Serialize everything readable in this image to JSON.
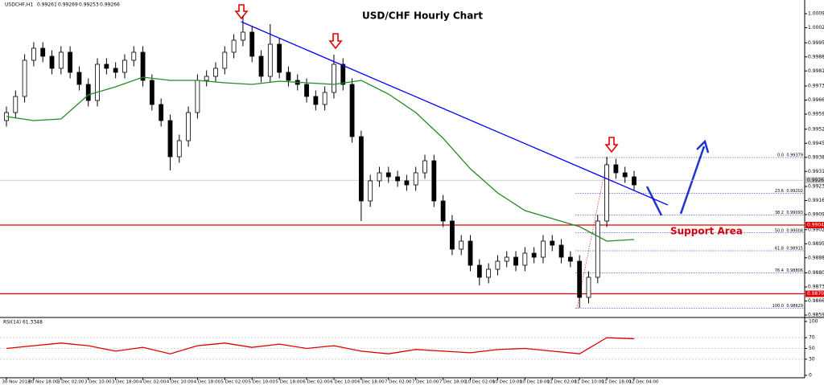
{
  "chart_data": {
    "type": "candlestick",
    "header": "USDCHF,H1",
    "header_values": [
      0.99261,
      0.99269,
      0.99253,
      0.99266
    ],
    "title": "USD/CHF Hourly Chart",
    "annotation": "Support Area",
    "up_color": "#ffffff",
    "down_color": "#000000",
    "ylim": [
      0.98583,
      1.00147
    ],
    "yticks": [
      1.00095,
      1.00025,
      {
        "value": 0.9995,
        "label": "0.99950"
      },
      {
        "value": 0.9988,
        "label": "0.99880"
      },
      {
        "value": 0.9981,
        "label": "0.99810"
      },
      0.99735,
      0.99665,
      0.99595,
      {
        "value": 0.9952,
        "label": "0.99520"
      },
      {
        "value": 0.9945,
        "label": "0.99450"
      },
      {
        "value": 0.9938,
        "label": "0.99380"
      },
      {
        "value": 0.9931,
        "label": "0.99310"
      },
      0.99235,
      0.99165,
      0.99095,
      {
        "value": 0.9902,
        "label": "0.99020"
      },
      {
        "value": 0.9895,
        "label": "0.98950"
      },
      {
        "value": 0.9888,
        "label": "0.98880"
      },
      0.98805,
      0.98735,
      0.98665,
      0.98595
    ],
    "x_labels": [
      "30 Nov 2018",
      "30 Nov 18:00",
      "3 Dec 02:00",
      "3 Dec 10:00",
      "3 Dec 18:00",
      "4 Dec 02:00",
      "4 Dec 10:00",
      "4 Dec 18:00",
      "5 Dec 02:00",
      "5 Dec 10:00",
      "5 Dec 18:00",
      "6 Dec 02:00",
      "6 Dec 10:00",
      "6 Dec 18:00",
      "7 Dec 02:00",
      "7 Dec 10:00",
      "7 Dec 18:00",
      "10 Dec 02:00",
      "10 Dec 10:00",
      "10 Dec 18:00",
      "11 Dec 02:00",
      "11 Dec 10:00",
      "11 Dec 18:00",
      "12 Dec 04:00"
    ],
    "open": [
      0.99563,
      0.99603,
      0.99683,
      0.99863,
      0.99923,
      0.99883,
      0.99823,
      0.99903,
      0.99803,
      0.99743,
      0.99663,
      0.99843,
      0.99823,
      0.99803,
      0.99863,
      0.99903,
      0.99763,
      0.99643,
      0.99563,
      0.99383,
      0.99463,
      0.99603,
      0.99763,
      0.99783,
      0.99823,
      0.99903,
      0.99963,
      1.00003,
      0.99883,
      0.99783,
      0.99943,
      0.99803,
      0.99763,
      0.99743,
      0.99683,
      0.99643,
      0.99703,
      0.99843,
      0.99743,
      0.99483,
      0.99163,
      0.99263,
      0.99303,
      0.99283,
      0.99263,
      0.99243,
      0.99303,
      0.99363,
      0.99163,
      0.99063,
      0.98923,
      0.98963,
      0.98843,
      0.98783,
      0.98823,
      0.98863,
      0.98883,
      0.98843,
      0.98903,
      0.98883,
      0.98963,
      0.98943,
      0.98883,
      0.98863,
      0.98683,
      0.98783,
      0.99063,
      0.99343,
      0.99303,
      0.99283
    ],
    "high": [
      0.99633,
      0.99713,
      0.99893,
      0.99953,
      0.99953,
      0.99913,
      0.99933,
      0.99933,
      0.99833,
      0.99773,
      0.99873,
      0.99873,
      0.99853,
      0.99893,
      0.99933,
      0.99933,
      0.99793,
      0.99673,
      0.99593,
      0.99493,
      0.99633,
      0.99793,
      0.99813,
      0.99853,
      0.99933,
      0.99993,
      1.00083,
      1.00033,
      0.99913,
      1.00043,
      0.99973,
      0.99833,
      0.99793,
      0.99773,
      0.99713,
      0.99733,
      0.99891,
      0.99873,
      0.99773,
      0.99513,
      0.99293,
      0.99333,
      0.99333,
      0.99313,
      0.99293,
      0.99333,
      0.99393,
      0.99393,
      0.99193,
      0.99093,
      0.98993,
      0.98993,
      0.98873,
      0.98853,
      0.98893,
      0.98913,
      0.98913,
      0.98933,
      0.98933,
      0.98993,
      0.98993,
      0.98973,
      0.98913,
      0.98893,
      0.98813,
      0.99093,
      0.99383,
      0.99373,
      0.99333,
      0.99313
    ],
    "low": [
      0.99533,
      0.99573,
      0.99653,
      0.99833,
      0.99853,
      0.99793,
      0.99793,
      0.99773,
      0.99713,
      0.99633,
      0.99633,
      0.99793,
      0.99773,
      0.99773,
      0.99833,
      0.99733,
      0.99613,
      0.99533,
      0.99315,
      0.99353,
      0.99433,
      0.99573,
      0.99733,
      0.99753,
      0.99793,
      0.99873,
      0.99933,
      0.99853,
      0.99753,
      0.99753,
      0.99773,
      0.99733,
      0.99713,
      0.99653,
      0.99613,
      0.99613,
      0.99673,
      0.99713,
      0.99453,
      0.99063,
      0.99133,
      0.99233,
      0.99253,
      0.99233,
      0.99213,
      0.99213,
      0.99273,
      0.99133,
      0.99033,
      0.98893,
      0.98893,
      0.98813,
      0.98743,
      0.98753,
      0.98793,
      0.98833,
      0.98813,
      0.98813,
      0.98853,
      0.98853,
      0.98913,
      0.98853,
      0.98833,
      0.98631,
      0.98653,
      0.98753,
      0.99033,
      0.99273,
      0.99253,
      0.99213
    ],
    "close": [
      0.99603,
      0.99683,
      0.99863,
      0.99923,
      0.99883,
      0.99823,
      0.99903,
      0.99803,
      0.99743,
      0.99663,
      0.99843,
      0.99823,
      0.99803,
      0.99863,
      0.99903,
      0.99763,
      0.99643,
      0.99563,
      0.99383,
      0.99463,
      0.99603,
      0.99763,
      0.99783,
      0.99823,
      0.99903,
      0.99963,
      1.00003,
      0.99883,
      0.99783,
      0.99943,
      0.99803,
      0.99763,
      0.99743,
      0.99683,
      0.99643,
      0.99703,
      0.99843,
      0.99743,
      0.99483,
      0.99163,
      0.99263,
      0.99303,
      0.99283,
      0.99263,
      0.99243,
      0.99303,
      0.99363,
      0.99163,
      0.99063,
      0.98923,
      0.98963,
      0.98843,
      0.98783,
      0.98823,
      0.98863,
      0.98883,
      0.98843,
      0.98903,
      0.98883,
      0.98963,
      0.98943,
      0.98883,
      0.98863,
      0.98683,
      0.98783,
      0.99063,
      0.99343,
      0.99303,
      0.99283,
      0.99243
    ],
    "moving_average": {
      "color": "#228b22",
      "x": [
        0,
        3,
        6,
        9,
        12,
        15,
        18,
        21,
        24,
        27,
        30,
        33,
        36,
        39,
        42,
        45,
        48,
        51,
        54,
        57,
        60,
        63,
        66,
        69
      ],
      "values": [
        0.99583,
        0.99563,
        0.99571,
        0.99691,
        0.99731,
        0.99779,
        0.99763,
        0.99763,
        0.99751,
        0.99743,
        0.99759,
        0.99751,
        0.99743,
        0.99763,
        0.99695,
        0.99603,
        0.99475,
        0.99323,
        0.99203,
        0.99115,
        0.99075,
        0.99035,
        0.98963,
        0.98971
      ]
    },
    "trendline": {
      "color": "#0000ff",
      "x": [
        25.8,
        72.7
      ],
      "values": [
        1.00055,
        0.99143
      ]
    },
    "hlines": {
      "color": "#e00000",
      "values": [
        0.99043,
        0.98701
      ]
    },
    "current_price": 0.99266,
    "fibonacci": {
      "color": "#0000cc",
      "levels": [
        {
          "value": 0,
          "label": "0.0"
        },
        23.6,
        38.2,
        {
          "value": 50,
          "label": "50.0"
        },
        61.8,
        76.4,
        {
          "value": 100,
          "label": "100.0"
        }
      ],
      "prices": [
        0.99379,
        0.99202,
        0.99093,
        0.99004,
        0.98915,
        0.98806,
        0.98629
      ]
    },
    "rsi": {
      "name": "RSI(14) 61.3348",
      "color": "#e00000",
      "x": [
        0,
        3,
        6,
        9,
        12,
        15,
        18,
        21,
        24,
        27,
        30,
        33,
        36,
        39,
        42,
        45,
        48,
        51,
        54,
        57,
        60,
        63,
        66,
        69
      ],
      "values": [
        50,
        55,
        60,
        55,
        45,
        52,
        40,
        55,
        60,
        52,
        58,
        50,
        55,
        45,
        40,
        48,
        45,
        42,
        48,
        50,
        45,
        40,
        70,
        68
      ],
      "ylim": [
        0,
        100
      ],
      "yticks": [
        100,
        70,
        50,
        30,
        0
      ]
    }
  }
}
